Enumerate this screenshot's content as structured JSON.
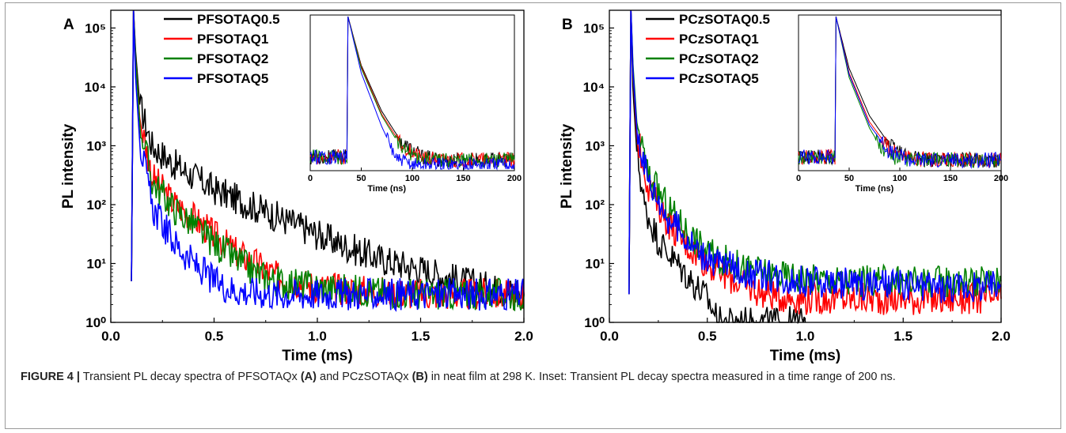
{
  "chart_data": [
    {
      "panel": "A",
      "type": "line",
      "xlabel": "Time (ms)",
      "ylabel": "PL intensity",
      "xlim": [
        0.0,
        2.0
      ],
      "ylim": [
        1,
        200000
      ],
      "yscale": "log",
      "xticks": [
        "0.0",
        "0.5",
        "1.0",
        "1.5",
        "2.0"
      ],
      "yticks": [
        1,
        10,
        100,
        1000,
        10000,
        100000
      ],
      "legend_position": "top-center",
      "series": [
        {
          "name": "PFSOTAQ0.5",
          "color": "#000000",
          "peak_x": 0.11,
          "x": [
            0.1,
            0.11,
            0.12,
            0.14,
            0.2,
            0.3,
            0.5,
            0.7,
            0.9,
            1.1,
            1.3,
            1.5,
            1.7,
            1.9,
            2.0
          ],
          "y": [
            5,
            200000,
            40000,
            5000,
            1000,
            500,
            180,
            90,
            45,
            22,
            12,
            8,
            5,
            3.5,
            3
          ]
        },
        {
          "name": "PFSOTAQ1",
          "color": "#ff0000",
          "peak_x": 0.11,
          "x": [
            0.1,
            0.11,
            0.12,
            0.14,
            0.2,
            0.3,
            0.4,
            0.5,
            0.6,
            0.7,
            0.8,
            1.0,
            1.2,
            1.5,
            2.0
          ],
          "y": [
            5,
            200000,
            30000,
            3000,
            300,
            110,
            60,
            30,
            16,
            10,
            6,
            4,
            3.5,
            3,
            3
          ]
        },
        {
          "name": "PFSOTAQ2",
          "color": "#008000",
          "peak_x": 0.11,
          "x": [
            0.1,
            0.11,
            0.12,
            0.14,
            0.2,
            0.3,
            0.4,
            0.5,
            0.6,
            0.7,
            0.8,
            1.0,
            1.2,
            1.5,
            2.0
          ],
          "y": [
            5,
            200000,
            30000,
            2500,
            250,
            90,
            45,
            22,
            12,
            7,
            5,
            4,
            3.5,
            3,
            3
          ]
        },
        {
          "name": "PFSOTAQ5",
          "color": "#0000ff",
          "peak_x": 0.11,
          "x": [
            0.1,
            0.11,
            0.12,
            0.14,
            0.2,
            0.3,
            0.4,
            0.5,
            0.6,
            0.8,
            1.0,
            1.3,
            1.6,
            2.0
          ],
          "y": [
            5,
            200000,
            15000,
            1200,
            90,
            25,
            10,
            5,
            3.5,
            3,
            3,
            3,
            3,
            3
          ]
        }
      ],
      "inset": {
        "xlabel": "Time (ns)",
        "xlim": [
          0,
          200
        ],
        "xticks": [
          "0",
          "50",
          "100",
          "150",
          "200"
        ],
        "rise_x": 37,
        "series": [
          {
            "name": "PFSOTAQ0.5",
            "color": "#000000",
            "x": [
              0,
              36,
              37,
              50,
              70,
              90,
              110,
              130,
              200
            ],
            "y": [
              0.08,
              0.08,
              1.0,
              0.68,
              0.38,
              0.17,
              0.08,
              0.06,
              0.06
            ]
          },
          {
            "name": "PFSOTAQ1",
            "color": "#ff0000",
            "x": [
              0,
              36,
              37,
              50,
              70,
              90,
              110,
              130,
              200
            ],
            "y": [
              0.08,
              0.08,
              1.0,
              0.67,
              0.36,
              0.15,
              0.07,
              0.06,
              0.06
            ]
          },
          {
            "name": "PFSOTAQ2",
            "color": "#008000",
            "x": [
              0,
              36,
              37,
              50,
              70,
              90,
              110,
              130,
              200
            ],
            "y": [
              0.08,
              0.08,
              1.0,
              0.66,
              0.35,
              0.13,
              0.07,
              0.06,
              0.06
            ]
          },
          {
            "name": "PFSOTAQ5",
            "color": "#0000ff",
            "x": [
              0,
              36,
              37,
              50,
              70,
              85,
              100,
              130,
              200
            ],
            "y": [
              0.08,
              0.08,
              1.0,
              0.63,
              0.28,
              0.06,
              0.03,
              0.03,
              0.03
            ]
          }
        ]
      }
    },
    {
      "panel": "B",
      "type": "line",
      "xlabel": "Time (ms)",
      "ylabel": "PL intensity",
      "xlim": [
        0.0,
        2.0
      ],
      "ylim": [
        1,
        200000
      ],
      "yscale": "log",
      "xticks": [
        "0.0",
        "0.5",
        "1.0",
        "1.5",
        "2.0"
      ],
      "yticks": [
        1,
        10,
        100,
        1000,
        10000,
        100000
      ],
      "legend_position": "top-center",
      "series": [
        {
          "name": "PCzSOTAQ0.5",
          "color": "#000000",
          "peak_x": 0.11,
          "x": [
            0.1,
            0.11,
            0.12,
            0.14,
            0.18,
            0.25,
            0.3,
            0.4,
            0.5,
            0.56,
            0.6,
            0.8,
            1.0
          ],
          "y": [
            3,
            200000,
            10000,
            800,
            90,
            25,
            15,
            6,
            2.5,
            1,
            1,
            1,
            1
          ]
        },
        {
          "name": "PCzSOTAQ1",
          "color": "#ff0000",
          "peak_x": 0.11,
          "x": [
            0.1,
            0.11,
            0.12,
            0.14,
            0.2,
            0.3,
            0.4,
            0.5,
            0.6,
            0.7,
            0.8,
            1.0,
            1.3,
            1.6,
            2.0
          ],
          "y": [
            3,
            200000,
            20000,
            1500,
            200,
            50,
            20,
            10,
            6,
            4,
            3,
            2.5,
            2.5,
            2.5,
            2.5
          ]
        },
        {
          "name": "PCzSOTAQ2",
          "color": "#008000",
          "peak_x": 0.11,
          "x": [
            0.1,
            0.11,
            0.12,
            0.14,
            0.2,
            0.3,
            0.4,
            0.5,
            0.7,
            0.9,
            1.2,
            1.5,
            2.0
          ],
          "y": [
            3,
            200000,
            25000,
            2500,
            300,
            90,
            35,
            15,
            8,
            6,
            5,
            5,
            5
          ]
        },
        {
          "name": "PCzSOTAQ5",
          "color": "#0000ff",
          "peak_x": 0.11,
          "x": [
            0.1,
            0.11,
            0.12,
            0.14,
            0.2,
            0.3,
            0.4,
            0.5,
            0.7,
            1.0,
            1.3,
            1.6,
            2.0
          ],
          "y": [
            3,
            200000,
            20000,
            2000,
            250,
            60,
            25,
            12,
            7,
            5,
            4.5,
            4,
            4
          ]
        }
      ],
      "inset": {
        "xlabel": "Time (ns)",
        "xlim": [
          0,
          200
        ],
        "xticks": [
          "0",
          "50",
          "100",
          "150",
          "200"
        ],
        "rise_x": 37,
        "series": [
          {
            "name": "PCzSOTAQ0.5",
            "color": "#000000",
            "x": [
              0,
              36,
              37,
              50,
              70,
              90,
              110,
              130,
              200
            ],
            "y": [
              0.08,
              0.08,
              1.0,
              0.66,
              0.35,
              0.16,
              0.08,
              0.06,
              0.06
            ]
          },
          {
            "name": "PCzSOTAQ1",
            "color": "#ff0000",
            "x": [
              0,
              36,
              37,
              50,
              70,
              90,
              110,
              130,
              200
            ],
            "y": [
              0.08,
              0.08,
              1.0,
              0.63,
              0.31,
              0.13,
              0.07,
              0.06,
              0.06
            ]
          },
          {
            "name": "PCzSOTAQ2",
            "color": "#008000",
            "x": [
              0,
              36,
              37,
              50,
              70,
              85,
              100,
              130,
              200
            ],
            "y": [
              0.08,
              0.08,
              1.0,
              0.6,
              0.27,
              0.1,
              0.06,
              0.06,
              0.06
            ]
          },
          {
            "name": "PCzSOTAQ5",
            "color": "#0000ff",
            "x": [
              0,
              36,
              37,
              50,
              70,
              90,
              110,
              130,
              200
            ],
            "y": [
              0.08,
              0.08,
              1.0,
              0.62,
              0.29,
              0.11,
              0.06,
              0.06,
              0.06
            ]
          }
        ]
      }
    }
  ],
  "caption": {
    "lead": "FIGURE 4 |",
    "part1": "Transient PL decay spectra of PFSOTAQx",
    "ref_a": "(A)",
    "part2": "and PCzSOTAQx",
    "ref_b": "(B)",
    "part3": "in neat film at 298 K. Inset: Transient PL decay spectra measured in a time range of 200 ns."
  }
}
